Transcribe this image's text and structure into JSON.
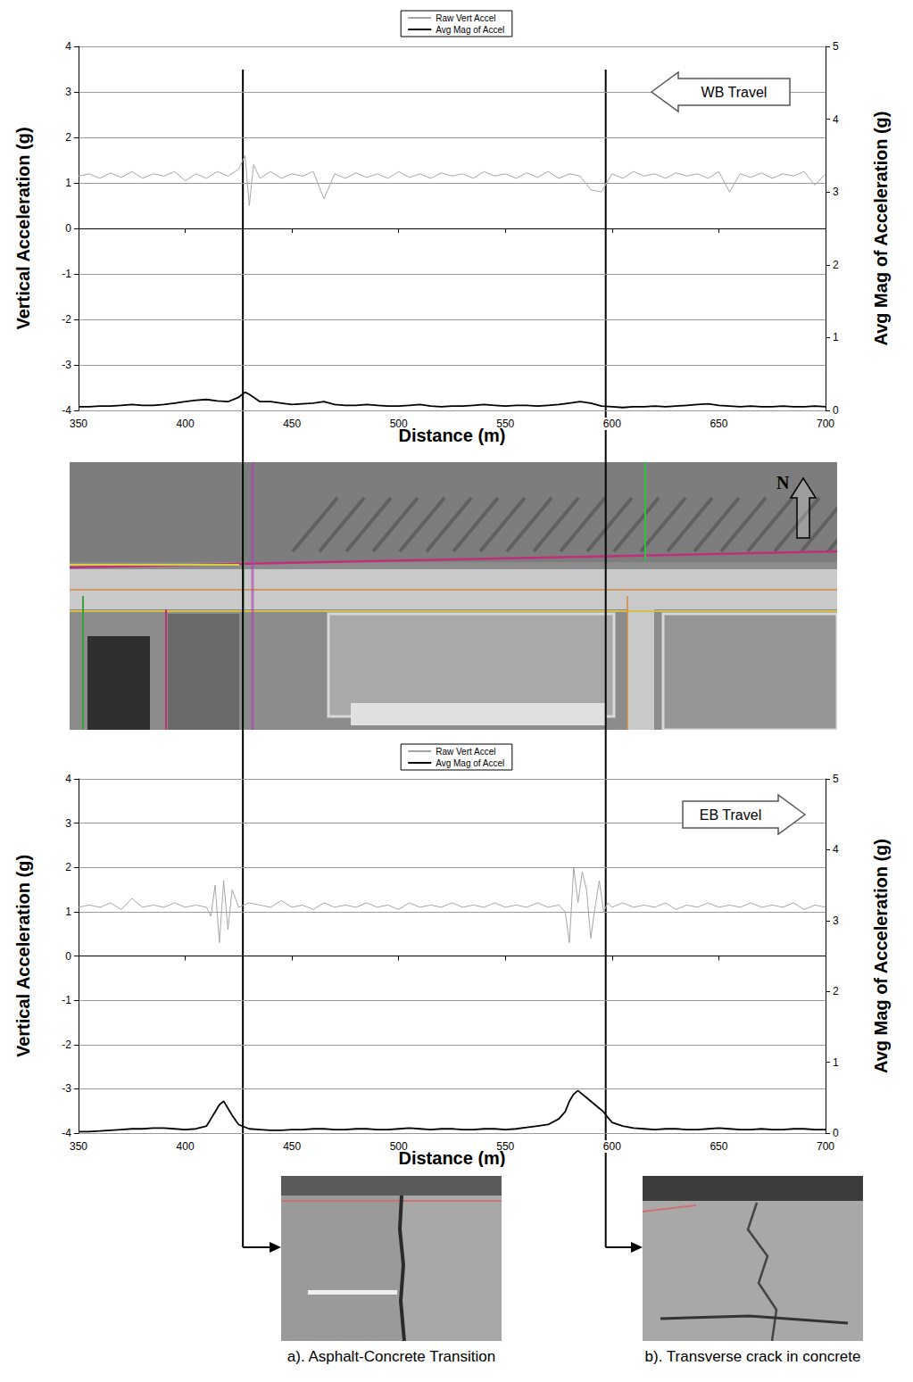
{
  "chart_data": [
    {
      "type": "line",
      "annotation": "WB Travel",
      "xlabel": "Distance (m)",
      "ylabel": "Vertical Acceleration (g)",
      "y2label": "Avg Mag of Acceleration (g)",
      "x": [
        350,
        355,
        360,
        365,
        370,
        375,
        380,
        385,
        390,
        395,
        400,
        405,
        410,
        415,
        420,
        425,
        428,
        430,
        432,
        435,
        440,
        445,
        450,
        455,
        460,
        465,
        470,
        475,
        480,
        485,
        490,
        495,
        500,
        505,
        510,
        515,
        520,
        525,
        530,
        535,
        540,
        545,
        550,
        555,
        560,
        565,
        570,
        575,
        580,
        585,
        590,
        595,
        600,
        605,
        610,
        615,
        620,
        625,
        630,
        635,
        640,
        645,
        650,
        655,
        660,
        665,
        670,
        675,
        680,
        685,
        690,
        695,
        700
      ],
      "series": [
        {
          "name": "Raw Vert Accel",
          "color": "#a6a6a6",
          "values": [
            1.15,
            1.2,
            1.1,
            1.22,
            1.12,
            1.25,
            1.1,
            1.2,
            1.15,
            1.25,
            1.05,
            1.2,
            1.1,
            1.25,
            1.15,
            1.3,
            1.6,
            0.5,
            1.4,
            1.1,
            1.25,
            1.1,
            1.2,
            1.15,
            1.25,
            0.65,
            1.2,
            1.1,
            1.22,
            1.12,
            1.2,
            1.1,
            1.25,
            1.12,
            1.2,
            1.1,
            1.22,
            1.15,
            1.2,
            1.1,
            1.25,
            1.15,
            1.2,
            1.1,
            1.22,
            1.12,
            1.25,
            1.1,
            1.2,
            1.15,
            0.85,
            0.8,
            1.2,
            1.1,
            1.25,
            1.15,
            1.2,
            1.1,
            1.22,
            1.15,
            1.2,
            1.1,
            1.25,
            0.8,
            1.2,
            1.12,
            1.22,
            1.1,
            1.2,
            1.15,
            1.25,
            0.95,
            1.2
          ]
        },
        {
          "name": "Avg Mag of Accel",
          "color": "#000000",
          "axis": "y2",
          "values": [
            0.05,
            0.05,
            0.06,
            0.06,
            0.07,
            0.08,
            0.07,
            0.07,
            0.08,
            0.1,
            0.12,
            0.14,
            0.15,
            0.13,
            0.12,
            0.18,
            0.25,
            0.22,
            0.18,
            0.12,
            0.12,
            0.1,
            0.08,
            0.09,
            0.1,
            0.12,
            0.08,
            0.07,
            0.07,
            0.08,
            0.07,
            0.06,
            0.06,
            0.07,
            0.08,
            0.06,
            0.05,
            0.06,
            0.06,
            0.07,
            0.08,
            0.07,
            0.06,
            0.07,
            0.07,
            0.06,
            0.07,
            0.08,
            0.1,
            0.12,
            0.1,
            0.06,
            0.05,
            0.04,
            0.05,
            0.05,
            0.06,
            0.05,
            0.06,
            0.07,
            0.08,
            0.09,
            0.07,
            0.06,
            0.05,
            0.06,
            0.05,
            0.05,
            0.06,
            0.05,
            0.05,
            0.06,
            0.05
          ]
        }
      ],
      "xlim": [
        350,
        700
      ],
      "xticks": [
        350,
        400,
        450,
        500,
        550,
        600,
        650,
        700
      ],
      "ylim": [
        -4,
        4
      ],
      "yticks": [
        -4,
        -3,
        -2,
        -1,
        0,
        1,
        2,
        3,
        4
      ],
      "y2lim": [
        0,
        5
      ],
      "y2ticks": [
        0,
        1,
        2,
        3,
        4,
        5
      ],
      "grid": true,
      "legend": "top"
    },
    {
      "type": "line",
      "annotation": "EB Travel",
      "xlabel": "Distance (m)",
      "ylabel": "Vertical Acceleration (g)",
      "y2label": "Avg Mag of Acceleration (g)",
      "x": [
        350,
        355,
        360,
        365,
        370,
        375,
        380,
        385,
        390,
        395,
        400,
        405,
        410,
        412,
        414,
        416,
        418,
        420,
        422,
        425,
        430,
        435,
        440,
        445,
        450,
        455,
        460,
        465,
        470,
        475,
        480,
        485,
        490,
        495,
        500,
        505,
        510,
        515,
        520,
        525,
        530,
        535,
        540,
        545,
        550,
        555,
        560,
        565,
        570,
        575,
        578,
        580,
        582,
        584,
        586,
        588,
        590,
        592,
        594,
        596,
        598,
        600,
        605,
        610,
        615,
        620,
        625,
        630,
        635,
        640,
        645,
        650,
        655,
        660,
        665,
        670,
        675,
        680,
        685,
        690,
        695,
        700
      ],
      "series": [
        {
          "name": "Raw Vert Accel",
          "color": "#a6a6a6",
          "values": [
            1.1,
            1.15,
            1.1,
            1.2,
            1.05,
            1.3,
            1.1,
            1.15,
            1.1,
            1.2,
            1.1,
            1.15,
            1.1,
            0.9,
            1.6,
            0.3,
            1.7,
            0.6,
            1.5,
            1.1,
            1.2,
            1.15,
            1.1,
            1.25,
            1.1,
            1.15,
            1.05,
            1.2,
            1.1,
            1.15,
            1.1,
            1.2,
            1.1,
            1.15,
            1.05,
            1.2,
            1.1,
            1.15,
            1.1,
            1.2,
            1.1,
            1.15,
            1.1,
            1.2,
            1.1,
            1.15,
            1.1,
            1.2,
            1.1,
            1.15,
            1.0,
            0.3,
            2.0,
            1.2,
            1.9,
            1.5,
            0.4,
            1.1,
            1.7,
            1.0,
            1.2,
            1.1,
            1.2,
            1.1,
            1.15,
            1.1,
            1.2,
            1.05,
            1.15,
            1.1,
            1.2,
            1.1,
            1.15,
            1.1,
            1.2,
            1.1,
            1.15,
            1.1,
            1.2,
            1.05,
            1.15,
            1.1
          ]
        },
        {
          "name": "Avg Mag of Accel",
          "color": "#000000",
          "axis": "y2",
          "values": [
            0.02,
            0.02,
            0.03,
            0.04,
            0.05,
            0.06,
            0.06,
            0.07,
            0.07,
            0.06,
            0.05,
            0.06,
            0.1,
            0.2,
            0.3,
            0.4,
            0.45,
            0.35,
            0.25,
            0.12,
            0.06,
            0.05,
            0.04,
            0.04,
            0.05,
            0.05,
            0.06,
            0.06,
            0.05,
            0.05,
            0.06,
            0.06,
            0.05,
            0.05,
            0.06,
            0.07,
            0.06,
            0.05,
            0.06,
            0.06,
            0.05,
            0.05,
            0.06,
            0.06,
            0.05,
            0.06,
            0.08,
            0.1,
            0.12,
            0.2,
            0.3,
            0.45,
            0.55,
            0.6,
            0.55,
            0.5,
            0.45,
            0.4,
            0.35,
            0.3,
            0.22,
            0.15,
            0.1,
            0.07,
            0.06,
            0.05,
            0.06,
            0.06,
            0.05,
            0.05,
            0.06,
            0.07,
            0.06,
            0.05,
            0.05,
            0.06,
            0.05,
            0.05,
            0.06,
            0.06,
            0.05,
            0.05
          ]
        }
      ],
      "xlim": [
        350,
        700
      ],
      "xticks": [
        350,
        400,
        450,
        500,
        550,
        600,
        650,
        700
      ],
      "ylim": [
        -4,
        4
      ],
      "yticks": [
        -4,
        -3,
        -2,
        -1,
        0,
        1,
        2,
        3,
        4
      ],
      "y2lim": [
        0,
        5
      ],
      "y2ticks": [
        0,
        1,
        2,
        3,
        4,
        5
      ],
      "grid": true,
      "legend": "top"
    }
  ],
  "aerial_photo": {
    "north_label": "N"
  },
  "callouts": [
    {
      "distance": 427,
      "caption": "a). Asphalt-Concrete Transition"
    },
    {
      "distance": 597,
      "caption": "b). Transverse crack in concrete"
    }
  ]
}
